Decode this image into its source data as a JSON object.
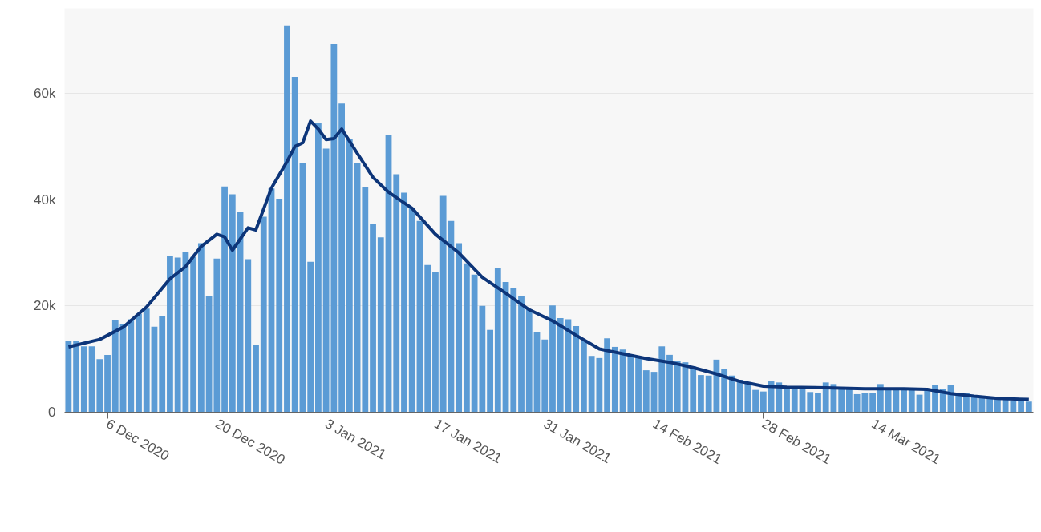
{
  "chart_data": {
    "type": "bar",
    "x": [
      "2020-12-01",
      "2020-12-02",
      "2020-12-03",
      "2020-12-04",
      "2020-12-05",
      "2020-12-06",
      "2020-12-07",
      "2020-12-08",
      "2020-12-09",
      "2020-12-10",
      "2020-12-11",
      "2020-12-12",
      "2020-12-13",
      "2020-12-14",
      "2020-12-15",
      "2020-12-16",
      "2020-12-17",
      "2020-12-18",
      "2020-12-19",
      "2020-12-20",
      "2020-12-21",
      "2020-12-22",
      "2020-12-23",
      "2020-12-24",
      "2020-12-25",
      "2020-12-26",
      "2020-12-27",
      "2020-12-28",
      "2020-12-29",
      "2020-12-30",
      "2020-12-31",
      "2021-01-01",
      "2021-01-02",
      "2021-01-03",
      "2021-01-04",
      "2021-01-05",
      "2021-01-06",
      "2021-01-07",
      "2021-01-08",
      "2021-01-09",
      "2021-01-10",
      "2021-01-11",
      "2021-01-12",
      "2021-01-13",
      "2021-01-14",
      "2021-01-15",
      "2021-01-16",
      "2021-01-17",
      "2021-01-18",
      "2021-01-19",
      "2021-01-20",
      "2021-01-21",
      "2021-01-22",
      "2021-01-23",
      "2021-01-24",
      "2021-01-25",
      "2021-01-26",
      "2021-01-27",
      "2021-01-28",
      "2021-01-29",
      "2021-01-30",
      "2021-01-31",
      "2021-02-01",
      "2021-02-02",
      "2021-02-03",
      "2021-02-04",
      "2021-02-05",
      "2021-02-06",
      "2021-02-07",
      "2021-02-08",
      "2021-02-09",
      "2021-02-10",
      "2021-02-11",
      "2021-02-12",
      "2021-02-13",
      "2021-02-14",
      "2021-02-15",
      "2021-02-16",
      "2021-02-17",
      "2021-02-18",
      "2021-02-19",
      "2021-02-20",
      "2021-02-21",
      "2021-02-22",
      "2021-02-23",
      "2021-02-24",
      "2021-02-25",
      "2021-02-26",
      "2021-02-27",
      "2021-02-28",
      "2021-03-01",
      "2021-03-02",
      "2021-03-03",
      "2021-03-04",
      "2021-03-05",
      "2021-03-06",
      "2021-03-07",
      "2021-03-08",
      "2021-03-09",
      "2021-03-10",
      "2021-03-11",
      "2021-03-12",
      "2021-03-13",
      "2021-03-14",
      "2021-03-15",
      "2021-03-16",
      "2021-03-17",
      "2021-03-18",
      "2021-03-19",
      "2021-03-20",
      "2021-03-21",
      "2021-03-22",
      "2021-03-23",
      "2021-03-24",
      "2021-03-25",
      "2021-03-26",
      "2021-03-27",
      "2021-03-28",
      "2021-03-29",
      "2021-03-30",
      "2021-03-31",
      "2021-04-01",
      "2021-04-02",
      "2021-04-03"
    ],
    "series": [
      {
        "color": "#5b9bd5",
        "values": [
          13400,
          13400,
          12400,
          12400,
          10000,
          10800,
          17400,
          16500,
          17500,
          18500,
          19500,
          16100,
          18100,
          29400,
          29100,
          30100,
          29200,
          31800,
          21800,
          28900,
          42500,
          41000,
          37700,
          28800,
          12700,
          36800,
          42100,
          40200,
          72800,
          63100,
          46900,
          28300,
          54400,
          49600,
          69300,
          58100,
          51500,
          46900,
          42400,
          35500,
          32900,
          52200,
          44800,
          41300,
          38500,
          36000,
          27700,
          26300,
          40700,
          36000,
          31800,
          28000,
          25900,
          20000,
          15500,
          27200,
          24500,
          23300,
          21800,
          19300,
          15100,
          13700,
          20100,
          17700,
          17500,
          16200,
          13500,
          10600,
          10200,
          13900,
          12300,
          11800,
          10900,
          10400,
          7900,
          7600,
          12400,
          10800,
          9600,
          9400,
          8600,
          7000,
          6900,
          9900,
          8100,
          6900,
          6100,
          5600,
          4200,
          3900,
          5800,
          5600,
          4600,
          4500,
          4500,
          3800,
          3600,
          5600,
          5300,
          4600,
          4500,
          3400,
          3600,
          3600,
          5300,
          4300,
          4300,
          4300,
          4300,
          3300,
          4400,
          5100,
          4400,
          5100,
          3400,
          3600,
          2900,
          3000,
          2800,
          2500,
          2400,
          2200,
          2100,
          2000
        ]
      },
      {
        "type": "line",
        "color": "#0d3579",
        "x": [
          "2020-12-01",
          "2020-12-05",
          "2020-12-08",
          "2020-12-11",
          "2020-12-14",
          "2020-12-16",
          "2020-12-18",
          "2020-12-20",
          "2020-12-21",
          "2020-12-22",
          "2020-12-24",
          "2020-12-25",
          "2020-12-27",
          "2020-12-29",
          "2020-12-30",
          "2020-12-31",
          "2021-01-01",
          "2021-01-02",
          "2021-01-03",
          "2021-01-04",
          "2021-01-05",
          "2021-01-07",
          "2021-01-09",
          "2021-01-11",
          "2021-01-14",
          "2021-01-17",
          "2021-01-20",
          "2021-01-23",
          "2021-01-26",
          "2021-01-29",
          "2021-02-01",
          "2021-02-04",
          "2021-02-07",
          "2021-02-10",
          "2021-02-13",
          "2021-02-16",
          "2021-02-19",
          "2021-02-22",
          "2021-02-25",
          "2021-02-28",
          "2021-03-03",
          "2021-03-08",
          "2021-03-13",
          "2021-03-18",
          "2021-03-21",
          "2021-03-24",
          "2021-03-27",
          "2021-03-30",
          "2021-04-03"
        ],
        "values": [
          12300,
          13700,
          16000,
          19800,
          25100,
          27400,
          31200,
          33500,
          33000,
          30500,
          34700,
          34300,
          42200,
          47200,
          50000,
          50700,
          54800,
          53300,
          51300,
          51500,
          53300,
          48700,
          44200,
          41400,
          38400,
          33500,
          30000,
          25400,
          22400,
          19300,
          17200,
          14500,
          11900,
          11000,
          10100,
          9400,
          8400,
          7200,
          5800,
          4900,
          4700,
          4600,
          4400,
          4400,
          4300,
          3500,
          3000,
          2600,
          2400
        ]
      }
    ],
    "xlim": [
      "2020-11-30T12:00",
      "2021-04-03T14:00"
    ],
    "xticks": [
      {
        "value": "2020-12-06",
        "label": "6 Dec 2020"
      },
      {
        "value": "2020-12-20",
        "label": "20 Dec 2020"
      },
      {
        "value": "2021-01-03",
        "label": "3 Jan 2021"
      },
      {
        "value": "2021-01-17",
        "label": "17 Jan 2021"
      },
      {
        "value": "2021-01-31",
        "label": "31 Jan 2021"
      },
      {
        "value": "2021-02-14",
        "label": "14 Feb 2021"
      },
      {
        "value": "2021-02-28",
        "label": "28 Feb 2021"
      },
      {
        "value": "2021-03-14",
        "label": "14 Mar 2021"
      },
      {
        "value": "2021-03-28",
        "label": null
      }
    ],
    "ylim": [
      0,
      76000
    ],
    "yticks": [
      0,
      {
        "value": 20000,
        "label": "20k"
      },
      {
        "value": 40000,
        "label": "40k"
      },
      {
        "value": 60000,
        "label": "60k"
      }
    ],
    "grid": "y",
    "line_style": "solid",
    "marker": "none"
  }
}
